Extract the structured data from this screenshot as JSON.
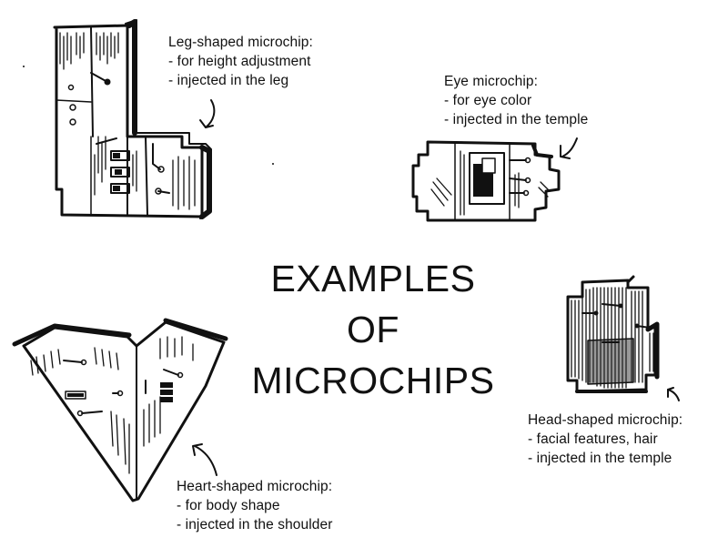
{
  "title_lines": [
    "EXAMPLES",
    "OF",
    "MICROCHIPS"
  ],
  "captions": {
    "leg": {
      "name": "Leg-shaped microchip:",
      "line1": "- for height adjustment",
      "line2": "- injected in the leg"
    },
    "eye": {
      "name": "Eye microchip:",
      "line1": "- for eye color",
      "line2": "- injected in the temple"
    },
    "head": {
      "name": "Head-shaped microchip:",
      "line1": "- facial features, hair",
      "line2": "- injected in the temple"
    },
    "heart": {
      "name": "Heart-shaped microchip:",
      "line1": "- for body shape",
      "line2": "- injected in the shoulder"
    }
  },
  "colors": {
    "ink": "#111111",
    "paper": "#ffffff"
  },
  "icons": [
    "leg-microchip-drawing",
    "eye-microchip-drawing",
    "head-microchip-drawing",
    "heart-microchip-drawing",
    "pointer-arrow-icon"
  ]
}
